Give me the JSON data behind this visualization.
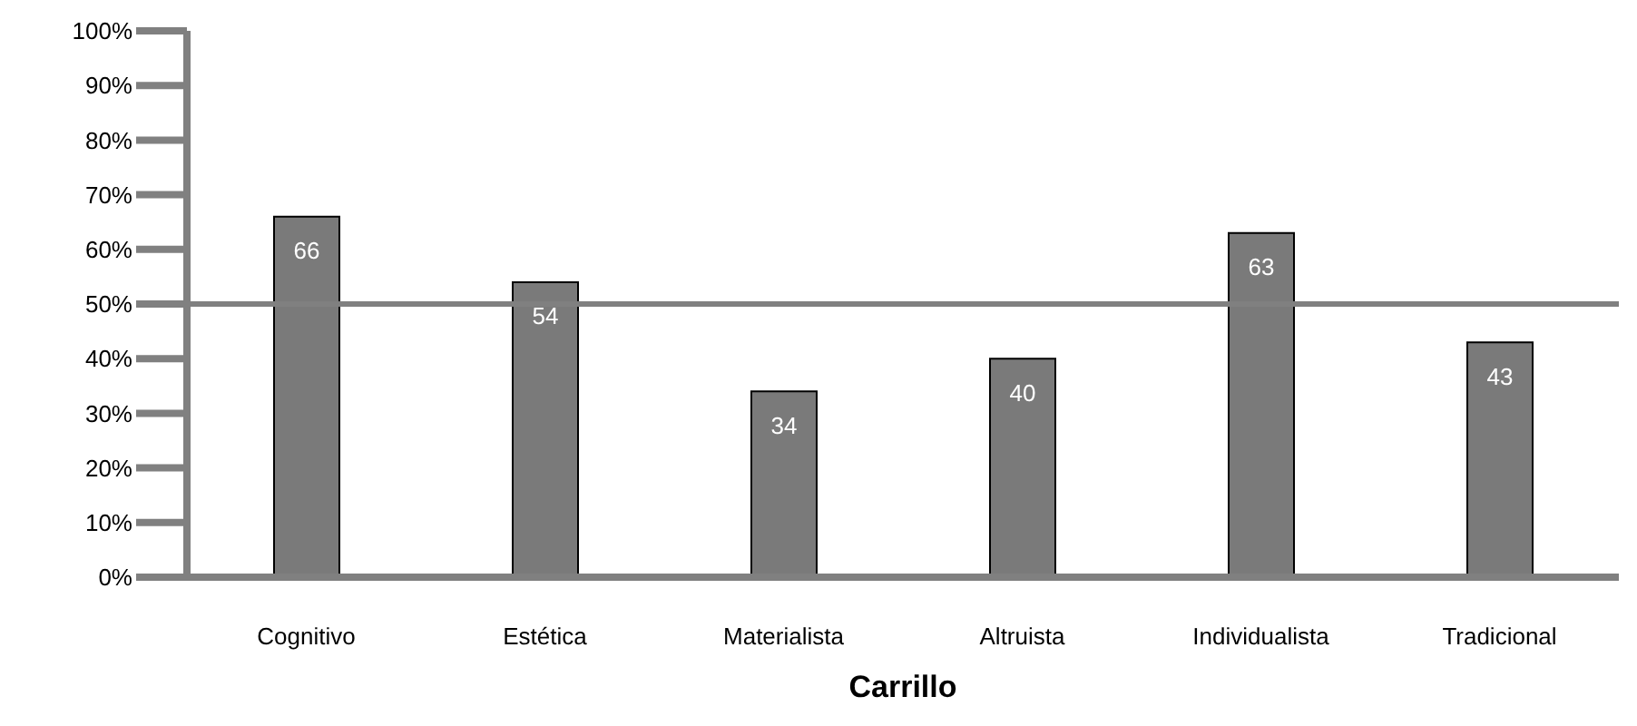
{
  "chart_data": {
    "type": "bar",
    "xlabel": "Carrillo",
    "categories": [
      "Cognitivo",
      "Estética",
      "Materialista",
      "Altruista",
      "Individualista",
      "Tradicional"
    ],
    "values": [
      66,
      54,
      34,
      40,
      63,
      43
    ],
    "color": "#7a7a7a",
    "data_labels": true,
    "ylim": [
      0,
      100
    ],
    "yticks": [
      {
        "value": 0,
        "label": "0%"
      },
      {
        "value": 10,
        "label": "10%"
      },
      {
        "value": 20,
        "label": "20%"
      },
      {
        "value": 30,
        "label": "30%"
      },
      {
        "value": 40,
        "label": "40%"
      },
      {
        "value": 50,
        "label": "50%"
      },
      {
        "value": 60,
        "label": "60%"
      },
      {
        "value": 70,
        "label": "70%"
      },
      {
        "value": 80,
        "label": "80%"
      },
      {
        "value": 90,
        "label": "90%"
      },
      {
        "value": 100,
        "label": "100%"
      }
    ],
    "ref_lines": [
      {
        "axis": "y",
        "value": 50,
        "color": "#808080"
      }
    ],
    "grid": false
  }
}
